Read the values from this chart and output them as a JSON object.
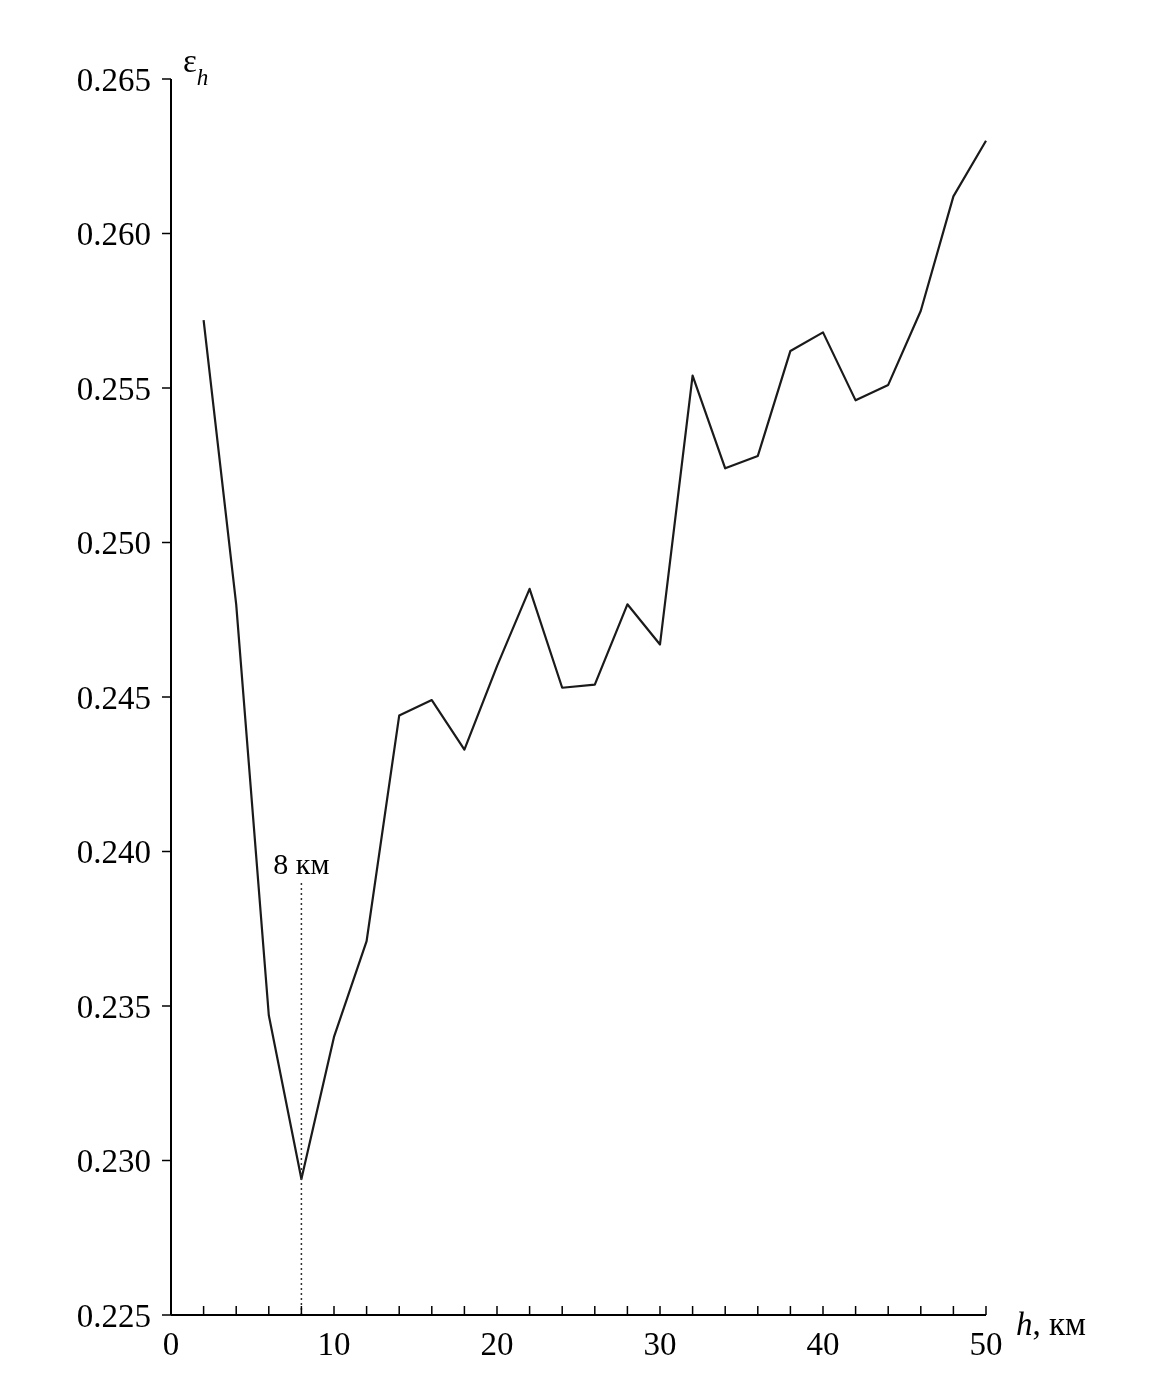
{
  "chart_data": {
    "type": "line",
    "xlabel": "h, км",
    "ylabel": "ε$_{h}$",
    "x": [
      2,
      4,
      6,
      8,
      10,
      12,
      14,
      16,
      18,
      20,
      22,
      24,
      26,
      28,
      30,
      32,
      34,
      36,
      38,
      40,
      42,
      44,
      46,
      48,
      50
    ],
    "series": [
      {
        "color": "#1a1a1a",
        "values": [
          0.2572,
          0.248,
          0.2347,
          0.2294,
          0.234,
          0.2371,
          0.2444,
          0.2449,
          0.2433,
          0.246,
          0.2485,
          0.2453,
          0.2454,
          0.248,
          0.2467,
          0.2554,
          0.2524,
          0.2528,
          0.2562,
          0.2568,
          0.2546,
          0.2551,
          0.2575,
          0.2612,
          0.263
        ]
      }
    ],
    "xlim": [
      0,
      50
    ],
    "xticks": [
      0,
      {
        "value": 2,
        "label": null
      },
      {
        "value": 4,
        "label": null
      },
      {
        "value": 6,
        "label": null
      },
      {
        "value": 8,
        "label": null
      },
      10,
      {
        "value": 12,
        "label": null
      },
      {
        "value": 14,
        "label": null
      },
      {
        "value": 16,
        "label": null
      },
      {
        "value": 18,
        "label": null
      },
      20,
      {
        "value": 22,
        "label": null
      },
      {
        "value": 24,
        "label": null
      },
      {
        "value": 26,
        "label": null
      },
      {
        "value": 28,
        "label": null
      },
      30,
      {
        "value": 32,
        "label": null
      },
      {
        "value": 34,
        "label": null
      },
      {
        "value": 36,
        "label": null
      },
      {
        "value": 38,
        "label": null
      },
      40,
      {
        "value": 42,
        "label": null
      },
      {
        "value": 44,
        "label": null
      },
      {
        "value": 46,
        "label": null
      },
      {
        "value": 48,
        "label": null
      },
      50
    ],
    "ylim": [
      0.225,
      0.265
    ],
    "yticks": [
      {
        "value": 0.225,
        "label": "0.225"
      },
      {
        "value": 0.23,
        "label": "0.230"
      },
      {
        "value": 0.235,
        "label": "0.235"
      },
      {
        "value": 0.24,
        "label": "0.240"
      },
      {
        "value": 0.245,
        "label": "0.245"
      },
      {
        "value": 0.25,
        "label": "0.250"
      },
      {
        "value": 0.255,
        "label": "0.255"
      },
      {
        "value": 0.26,
        "label": "0.260"
      },
      {
        "value": 0.265,
        "label": "0.265"
      }
    ],
    "ref_lines": [
      {
        "axis": "x",
        "value": 8,
        "label": "8 км",
        "line_style": "dotted"
      }
    ],
    "grid": false,
    "marker": "none",
    "line_style": "solid"
  }
}
